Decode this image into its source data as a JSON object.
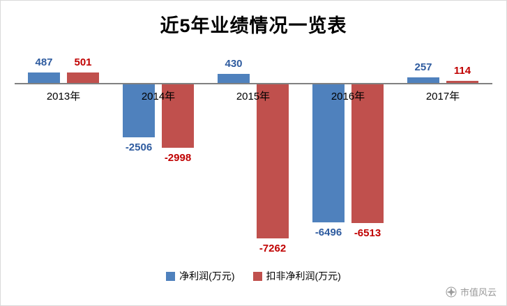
{
  "title": "近5年业绩情况一览表",
  "watermark": {
    "label": "市值风云"
  },
  "chart_data": {
    "type": "bar",
    "title": "近5年业绩情况一览表",
    "categories": [
      "2013年",
      "2014年",
      "2015年",
      "2016年",
      "2017年"
    ],
    "series": [
      {
        "name": "净利润(万元)",
        "color": "#4F81BD",
        "label_color": "#2E5B9F",
        "values": [
          487,
          -2506,
          430,
          -6496,
          257
        ]
      },
      {
        "name": "扣非净利润(万元)",
        "color": "#C0504D",
        "label_color": "#C00000",
        "values": [
          501,
          -2998,
          -7262,
          -6513,
          114
        ]
      }
    ],
    "ylim": [
      -7600,
      900
    ],
    "xlabel": "",
    "ylabel": "",
    "grid": false,
    "legend_position": "bottom"
  }
}
